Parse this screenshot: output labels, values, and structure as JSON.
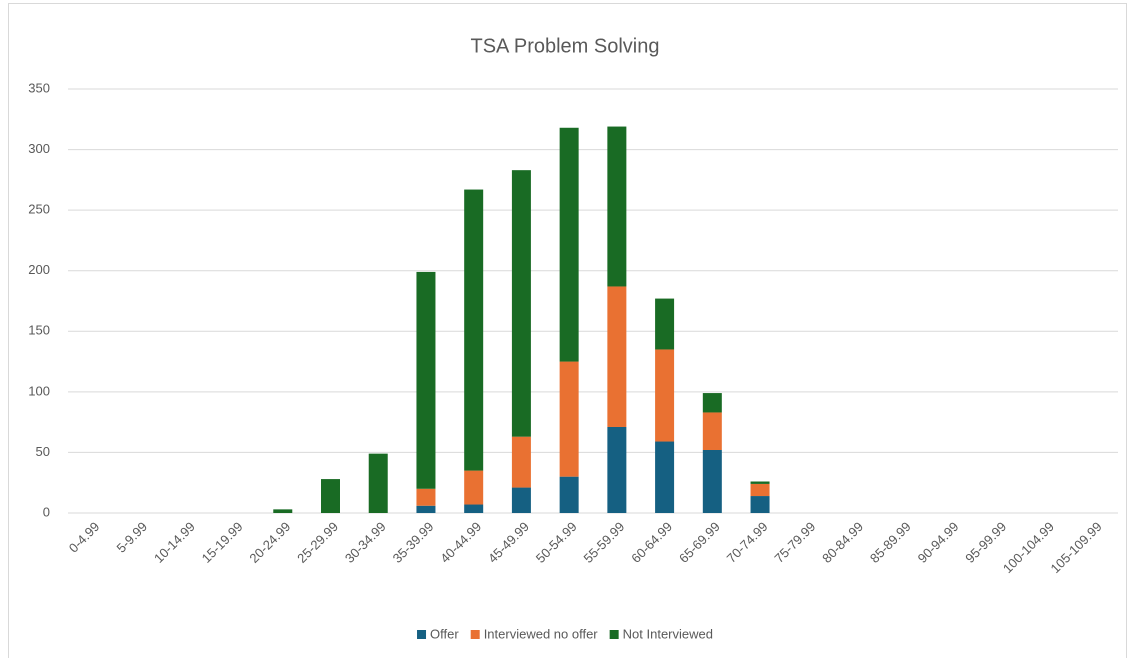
{
  "chart_data": {
    "type": "stacked_bar",
    "title": "TSA Problem Solving",
    "categories": [
      "0-4.99",
      "5-9.99",
      "10-14.99",
      "15-19.99",
      "20-24.99",
      "25-29.99",
      "30-34.99",
      "35-39.99",
      "40-44.99",
      "45-49.99",
      "50-54.99",
      "55-59.99",
      "60-64.99",
      "65-69.99",
      "70-74.99",
      "75-79.99",
      "80-84.99",
      "85-89.99",
      "90-94.99",
      "95-99.99",
      "100-104.99",
      "105-109.99"
    ],
    "series": [
      {
        "name": "Offer",
        "color": "#156082",
        "values": [
          0,
          0,
          0,
          0,
          0,
          0,
          0,
          6,
          7,
          21,
          30,
          71,
          59,
          52,
          14,
          0,
          0,
          0,
          0,
          0,
          0,
          0
        ]
      },
      {
        "name": "Interviewed no offer",
        "color": "#e97132",
        "values": [
          0,
          0,
          0,
          0,
          0,
          0,
          0,
          14,
          28,
          42,
          95,
          116,
          76,
          31,
          10,
          0,
          0,
          0,
          0,
          0,
          0,
          0
        ]
      },
      {
        "name": "Not Interviewed",
        "color": "#196b24",
        "values": [
          0,
          0,
          0,
          0,
          3,
          28,
          49,
          179,
          232,
          220,
          193,
          132,
          42,
          16,
          2,
          0,
          0,
          0,
          0,
          0,
          0,
          0
        ]
      }
    ],
    "ylim": [
      0,
      350
    ],
    "yticks": [
      0,
      50,
      100,
      150,
      200,
      250,
      300,
      350
    ],
    "grid": true,
    "legend": "bottom"
  }
}
